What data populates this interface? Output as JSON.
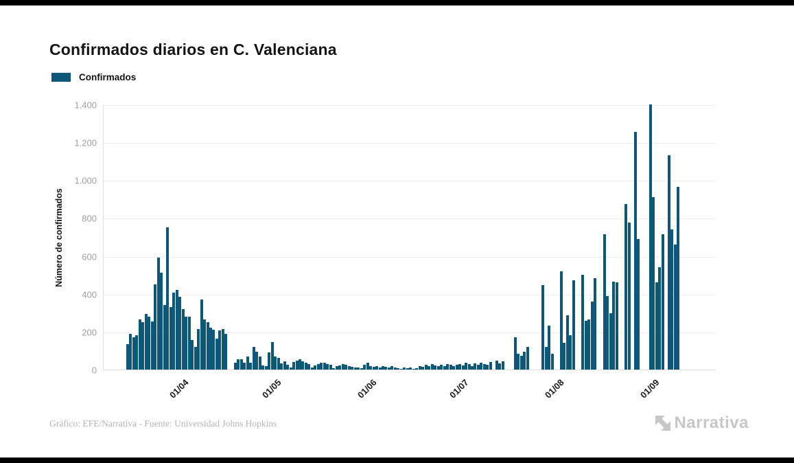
{
  "page": {
    "background": "#ffffff",
    "letterbox_color": "#000000"
  },
  "header": {
    "title": "Confirmados diarios en C. Valenciana"
  },
  "legend": {
    "label": "Confirmados",
    "swatch_color": "#0d5878"
  },
  "chart_data": {
    "type": "bar",
    "title": "Confirmados diarios en C. Valenciana",
    "xlabel": "",
    "ylabel": "Número de confirmados",
    "ylim": [
      0,
      1400
    ],
    "grid": true,
    "legend_position": "top-left",
    "bar_color": "#0d5878",
    "gridline_color": "#ebebeb",
    "y_ticks": [
      {
        "value": 0,
        "label": "0"
      },
      {
        "value": 200,
        "label": "200"
      },
      {
        "value": 400,
        "label": "400"
      },
      {
        "value": 600,
        "label": "600"
      },
      {
        "value": 800,
        "label": "800"
      },
      {
        "value": 1000,
        "label": "1.000"
      },
      {
        "value": 1200,
        "label": "1.200"
      },
      {
        "value": 1400,
        "label": "1.400"
      }
    ],
    "x_ticks": [
      {
        "index": 15,
        "label": "01/04"
      },
      {
        "index": 45,
        "label": "01/05"
      },
      {
        "index": 76,
        "label": "01/06"
      },
      {
        "index": 106,
        "label": "01/07"
      },
      {
        "index": 137,
        "label": "01/08"
      },
      {
        "index": 168,
        "label": "01/09"
      }
    ],
    "series": [
      {
        "name": "Confirmados",
        "values": [
          135,
          190,
          170,
          180,
          265,
          250,
          295,
          280,
          255,
          450,
          590,
          510,
          340,
          750,
          330,
          405,
          420,
          385,
          320,
          280,
          280,
          155,
          120,
          215,
          370,
          265,
          250,
          220,
          210,
          165,
          205,
          215,
          190,
          0,
          0,
          37,
          56,
          54,
          37,
          68,
          37,
          120,
          96,
          68,
          23,
          20,
          90,
          145,
          70,
          62,
          33,
          45,
          25,
          12,
          40,
          48,
          55,
          42,
          35,
          28,
          10,
          22,
          30,
          35,
          38,
          30,
          25,
          8,
          18,
          22,
          28,
          24,
          20,
          15,
          12,
          10,
          8,
          25,
          35,
          20,
          15,
          18,
          12,
          20,
          15,
          10,
          18,
          12,
          8,
          5,
          10,
          8,
          12,
          5,
          8,
          20,
          15,
          25,
          18,
          28,
          22,
          18,
          25,
          20,
          30,
          24,
          18,
          25,
          30,
          22,
          35,
          28,
          20,
          32,
          26,
          38,
          30,
          24,
          40,
          0,
          46,
          31,
          43,
          0,
          0,
          0,
          172,
          84,
          72,
          94,
          118,
          0,
          0,
          0,
          0,
          446,
          120,
          231,
          82,
          0,
          0,
          520,
          142,
          287,
          181,
          470,
          0,
          0,
          501,
          257,
          265,
          359,
          484,
          0,
          0,
          713,
          389,
          296,
          466,
          460,
          0,
          0,
          875,
          775,
          0,
          1255,
          690,
          0,
          0,
          0,
          1400,
          910,
          460,
          540,
          715,
          0,
          1130,
          740,
          660,
          965
        ]
      }
    ]
  },
  "footer": {
    "credit": "Gráfico: EFE/Narrativa - Fuente: Universidad Johns Hopkins",
    "brand": "Narrativa"
  }
}
